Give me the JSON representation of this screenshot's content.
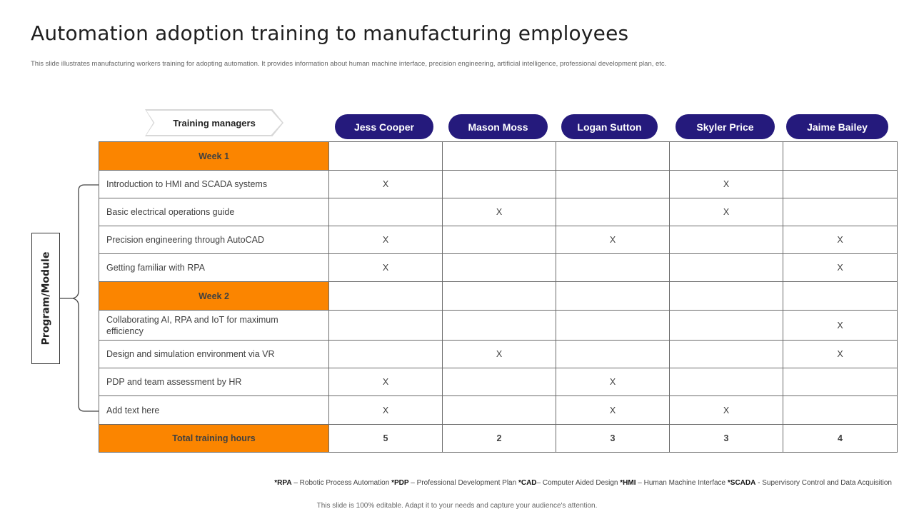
{
  "title": "Automation adoption training to manufacturing employees",
  "subtitle": "This slide illustrates manufacturing workers training for adopting automation. It provides information about human machine interface, precision engineering, artificial intelligence, professional development plan, etc.",
  "training_managers_label": "Training managers",
  "managers": [
    "Jess Cooper",
    "Mason Moss",
    "Logan Sutton",
    "Skyler Price",
    "Jaime Bailey"
  ],
  "side_label": "Program/Module",
  "rows": [
    {
      "label": "Week 1",
      "week": true,
      "cells": [
        "",
        "",
        "",
        "",
        ""
      ]
    },
    {
      "label": "Introduction to HMI and SCADA systems",
      "cells": [
        "X",
        "",
        "",
        "X",
        ""
      ]
    },
    {
      "label": "Basic electrical operations guide",
      "cells": [
        "",
        "X",
        "",
        "X",
        ""
      ]
    },
    {
      "label": "Precision engineering through AutoCAD",
      "cells": [
        "X",
        "",
        "X",
        "",
        "X"
      ]
    },
    {
      "label": "Getting familiar with RPA",
      "cells": [
        "X",
        "",
        "",
        "",
        "X"
      ]
    },
    {
      "label": "Week 2",
      "week": true,
      "cells": [
        "",
        "",
        "",
        "",
        ""
      ]
    },
    {
      "label": "Collaborating AI, RPA and IoT for maximum efficiency",
      "cells": [
        "",
        "",
        "",
        "",
        "X"
      ]
    },
    {
      "label": "Design and simulation environment via VR",
      "cells": [
        "",
        "X",
        "",
        "",
        "X"
      ]
    },
    {
      "label": "PDP and team assessment by HR",
      "cells": [
        "X",
        "",
        "X",
        "",
        ""
      ]
    },
    {
      "label": "Add text here",
      "cells": [
        "X",
        "",
        "X",
        "X",
        ""
      ]
    },
    {
      "label": "Total training hours",
      "total": true,
      "cells": [
        "5",
        "2",
        "3",
        "3",
        "4"
      ]
    }
  ],
  "legend": [
    {
      "abbr": "*RPA",
      "text": " – Robotic Process Automation "
    },
    {
      "abbr": "*PDP",
      "text": " – Professional Development Plan "
    },
    {
      "abbr": "*CAD",
      "text": "– Computer Aided Design "
    },
    {
      "abbr": "*HMI",
      "text": " – Human Machine Interface "
    },
    {
      "abbr": "*SCADA",
      "text": " - Supervisory Control and Data Acquisition"
    }
  ],
  "footer": "This slide is 100% editable. Adapt it to your needs and capture your audience's attention."
}
